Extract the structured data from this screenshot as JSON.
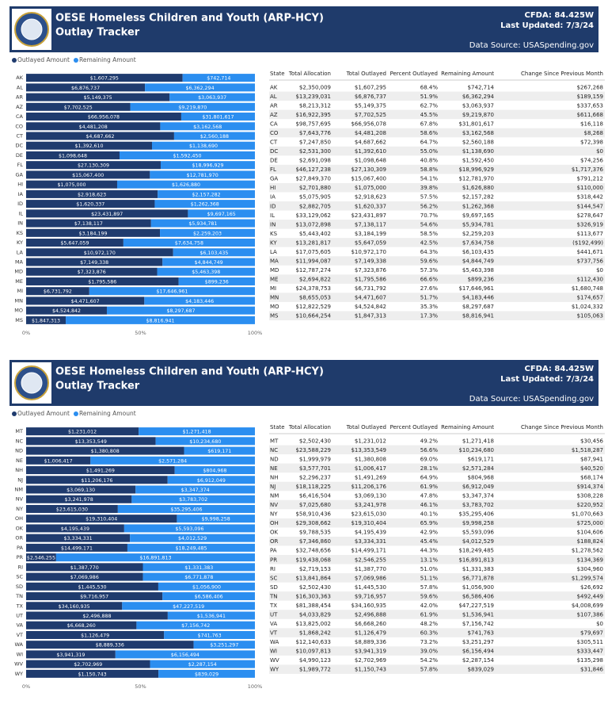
{
  "panels": [
    {
      "title": [
        "OESE Homeless Children and Youth (ARP-HCY)",
        "Outlay Tracker"
      ],
      "cfda": "CFDA: 84.425W",
      "updated": "Last Updated: 7/3/24",
      "source": "Data Source: USASpending.gov",
      "table": {
        "columns": [
          "State",
          "Total Allocation",
          "Total Outlayed",
          "Percent Outlayed",
          "Remaining Amount",
          "Change Since Previous Month"
        ],
        "rows": [
          [
            "AK",
            "$2,350,009",
            "$1,607,295",
            "68.4%",
            "$742,714",
            "$267,268"
          ],
          [
            "AL",
            "$13,239,031",
            "$6,876,737",
            "51.9%",
            "$6,362,294",
            "$189,159"
          ],
          [
            "AR",
            "$8,213,312",
            "$5,149,375",
            "62.7%",
            "$3,063,937",
            "$337,653"
          ],
          [
            "AZ",
            "$16,922,395",
            "$7,702,525",
            "45.5%",
            "$9,219,870",
            "$611,668"
          ],
          [
            "CA",
            "$98,757,695",
            "$66,956,078",
            "67.8%",
            "$31,801,617",
            "$16,118"
          ],
          [
            "CO",
            "$7,643,776",
            "$4,481,208",
            "58.6%",
            "$3,162,568",
            "$8,268"
          ],
          [
            "CT",
            "$7,247,850",
            "$4,687,662",
            "64.7%",
            "$2,560,188",
            "$72,398"
          ],
          [
            "DC",
            "$2,531,300",
            "$1,392,610",
            "55.0%",
            "$1,138,690",
            "$0"
          ],
          [
            "DE",
            "$2,691,098",
            "$1,098,648",
            "40.8%",
            "$1,592,450",
            "$74,256"
          ],
          [
            "FL",
            "$46,127,238",
            "$27,130,309",
            "58.8%",
            "$18,996,929",
            "$1,717,376"
          ],
          [
            "GA",
            "$27,849,370",
            "$15,067,400",
            "54.1%",
            "$12,781,970",
            "$791,212"
          ],
          [
            "HI",
            "$2,701,880",
            "$1,075,000",
            "39.8%",
            "$1,626,880",
            "$110,000"
          ],
          [
            "IA",
            "$5,075,905",
            "$2,918,623",
            "57.5%",
            "$2,157,282",
            "$318,442"
          ],
          [
            "ID",
            "$2,882,705",
            "$1,620,337",
            "56.2%",
            "$1,262,368",
            "$144,547"
          ],
          [
            "IL",
            "$33,129,062",
            "$23,431,897",
            "70.7%",
            "$9,697,165",
            "$278,647"
          ],
          [
            "IN",
            "$13,072,898",
            "$7,138,117",
            "54.6%",
            "$5,934,781",
            "$326,919"
          ],
          [
            "KS",
            "$5,443,402",
            "$3,184,199",
            "58.5%",
            "$2,259,203",
            "$113,677"
          ],
          [
            "KY",
            "$13,281,817",
            "$5,647,059",
            "42.5%",
            "$7,634,758",
            "($192,499)"
          ],
          [
            "LA",
            "$17,075,605",
            "$10,972,170",
            "64.3%",
            "$6,103,435",
            "$441,671"
          ],
          [
            "MA",
            "$11,994,087",
            "$7,149,338",
            "59.6%",
            "$4,844,749",
            "$737,756"
          ],
          [
            "MD",
            "$12,787,274",
            "$7,323,876",
            "57.3%",
            "$5,463,398",
            "$0"
          ],
          [
            "ME",
            "$2,694,822",
            "$1,795,586",
            "66.6%",
            "$899,236",
            "$112,430"
          ],
          [
            "MI",
            "$24,378,753",
            "$6,731,792",
            "27.6%",
            "$17,646,961",
            "$1,680,748"
          ],
          [
            "MN",
            "$8,655,053",
            "$4,471,607",
            "51.7%",
            "$4,183,446",
            "$174,657"
          ],
          [
            "MO",
            "$12,822,529",
            "$4,524,842",
            "35.3%",
            "$8,297,687",
            "$1,024,332"
          ],
          [
            "MS",
            "$10,664,254",
            "$1,847,313",
            "17.3%",
            "$8,816,941",
            "$105,063"
          ]
        ]
      }
    },
    {
      "title": [
        "OESE Homeless Children and Youth (ARP-HCY)",
        "Outlay Tracker"
      ],
      "cfda": "CFDA: 84.425W",
      "updated": "Last Updated: 7/3/24",
      "source": "Data Source: USASpending.gov",
      "table": {
        "columns": [
          "State",
          "Total Allocation",
          "Total Outlayed",
          "Percent Outlayed",
          "Remaining Amount",
          "Change Since Previous Month"
        ],
        "rows": [
          [
            "MT",
            "$2,502,430",
            "$1,231,012",
            "49.2%",
            "$1,271,418",
            "$30,456"
          ],
          [
            "NC",
            "$23,588,229",
            "$13,353,549",
            "56.6%",
            "$10,234,680",
            "$1,518,287"
          ],
          [
            "ND",
            "$1,999,979",
            "$1,380,808",
            "69.0%",
            "$619,171",
            "$87,941"
          ],
          [
            "NE",
            "$3,577,701",
            "$1,006,417",
            "28.1%",
            "$2,571,284",
            "$40,520"
          ],
          [
            "NH",
            "$2,296,237",
            "$1,491,269",
            "64.9%",
            "$804,968",
            "$68,174"
          ],
          [
            "NJ",
            "$18,118,225",
            "$11,206,176",
            "61.9%",
            "$6,912,049",
            "$914,374"
          ],
          [
            "NM",
            "$6,416,504",
            "$3,069,130",
            "47.8%",
            "$3,347,374",
            "$308,228"
          ],
          [
            "NV",
            "$7,025,680",
            "$3,241,978",
            "46.1%",
            "$3,783,702",
            "$220,952"
          ],
          [
            "NY",
            "$58,910,436",
            "$23,615,030",
            "40.1%",
            "$35,295,406",
            "$1,070,663"
          ],
          [
            "OH",
            "$29,308,662",
            "$19,310,404",
            "65.9%",
            "$9,998,258",
            "$725,000"
          ],
          [
            "OK",
            "$9,788,535",
            "$4,195,439",
            "42.9%",
            "$5,593,096",
            "$104,606"
          ],
          [
            "OR",
            "$7,346,860",
            "$3,334,331",
            "45.4%",
            "$4,012,529",
            "$188,824"
          ],
          [
            "PA",
            "$32,748,656",
            "$14,499,171",
            "44.3%",
            "$18,249,485",
            "$1,278,562"
          ],
          [
            "PR",
            "$19,438,068",
            "$2,546,255",
            "13.1%",
            "$16,891,813",
            "$134,369"
          ],
          [
            "RI",
            "$2,719,153",
            "$1,387,770",
            "51.0%",
            "$1,331,383",
            "$304,960"
          ],
          [
            "SC",
            "$13,841,864",
            "$7,069,986",
            "51.1%",
            "$6,771,878",
            "$1,299,574"
          ],
          [
            "SD",
            "$2,502,430",
            "$1,445,530",
            "57.8%",
            "$1,056,900",
            "$26,692"
          ],
          [
            "TN",
            "$16,303,363",
            "$9,716,957",
            "59.6%",
            "$6,586,406",
            "$492,449"
          ],
          [
            "TX",
            "$81,388,454",
            "$34,160,935",
            "42.0%",
            "$47,227,519",
            "$4,008,699"
          ],
          [
            "UT",
            "$4,033,829",
            "$2,496,888",
            "61.9%",
            "$1,536,941",
            "$107,386"
          ],
          [
            "VA",
            "$13,825,002",
            "$6,668,260",
            "48.2%",
            "$7,156,742",
            "$0"
          ],
          [
            "VT",
            "$1,868,242",
            "$1,126,479",
            "60.3%",
            "$741,763",
            "$79,697"
          ],
          [
            "WA",
            "$12,140,633",
            "$8,889,336",
            "73.2%",
            "$3,251,297",
            "$305,511"
          ],
          [
            "WI",
            "$10,097,813",
            "$3,941,319",
            "39.0%",
            "$6,156,494",
            "$333,447"
          ],
          [
            "WV",
            "$4,990,123",
            "$2,702,969",
            "54.2%",
            "$2,287,154",
            "$135,298"
          ],
          [
            "WY",
            "$1,989,772",
            "$1,150,743",
            "57.8%",
            "$839,029",
            "$31,846"
          ]
        ]
      }
    }
  ],
  "chart_data": [
    {
      "type": "bar",
      "orientation": "horizontal",
      "stacking": "percent",
      "legend": "top-left",
      "categories": [
        "AK",
        "AL",
        "AR",
        "AZ",
        "CA",
        "CO",
        "CT",
        "DC",
        "DE",
        "FL",
        "GA",
        "HI",
        "IA",
        "ID",
        "IL",
        "IN",
        "KS",
        "KY",
        "LA",
        "MA",
        "MD",
        "ME",
        "MI",
        "MN",
        "MO",
        "MS"
      ],
      "series": [
        {
          "name": "Outlayed Amount",
          "color": "#1f3b6e",
          "values": [
            1607295,
            6876737,
            5149375,
            7702525,
            66956078,
            4481208,
            4687662,
            1392610,
            1098648,
            27130309,
            15067400,
            1075000,
            2918623,
            1620337,
            23431897,
            7138117,
            3184199,
            5647059,
            10972170,
            7149338,
            7323876,
            1795586,
            6731792,
            4471607,
            4524842,
            1847313
          ],
          "value_labels": [
            "$1,607,295",
            "$6,876,737",
            "$5,149,375",
            "$7,702,525",
            "$66,956,078",
            "$4,481,208",
            "$4,687,662",
            "$1,392,610",
            "$1,098,648",
            "$27,130,309",
            "$15,067,400",
            "$1,075,000",
            "$2,918,623",
            "$1,620,337",
            "$23,431,897",
            "$7,138,117",
            "$3,184,199",
            "$5,647,059",
            "$10,972,170",
            "$7,149,338",
            "$7,323,876",
            "$1,795,586",
            "$6,731,792",
            "$4,471,607",
            "$4,524,842",
            "$1,847,313"
          ]
        },
        {
          "name": "Remaining Amount",
          "color": "#2b8ef0",
          "values": [
            742714,
            6362294,
            3063937,
            9219870,
            31801617,
            3162568,
            2560188,
            1138690,
            1592450,
            18996929,
            12781970,
            1626880,
            2157282,
            1262368,
            9697165,
            5934781,
            2259203,
            7634758,
            6103435,
            4844749,
            5463398,
            899236,
            17646961,
            4183446,
            8297687,
            8816941
          ],
          "value_labels": [
            "$742,714",
            "$6,362,294",
            "$3,063,937",
            "$9,219,870",
            "$31,801,617",
            "$3,162,568",
            "$2,560,188",
            "$1,138,690",
            "$1,592,450",
            "$18,996,929",
            "$12,781,970",
            "$1,626,880",
            "$2,157,282",
            "$1,262,368",
            "$9,697,165",
            "$5,934,781",
            "$2,259,203",
            "$7,634,758",
            "$6,103,435",
            "$4,844,749",
            "$5,463,398",
            "$899,236",
            "$17,646,961",
            "$4,183,446",
            "$8,297,687",
            "$8,816,941"
          ]
        }
      ],
      "xlim": [
        0,
        100
      ],
      "xticks": [
        {
          "value": 0,
          "label": "0%"
        },
        {
          "value": 50,
          "label": "50%"
        },
        {
          "value": 100,
          "label": "100%"
        }
      ]
    },
    {
      "type": "bar",
      "orientation": "horizontal",
      "stacking": "percent",
      "legend": "top-left",
      "categories": [
        "MT",
        "NC",
        "ND",
        "NE",
        "NH",
        "NJ",
        "NM",
        "NV",
        "NY",
        "OH",
        "OK",
        "OR",
        "PA",
        "PR",
        "RI",
        "SC",
        "SD",
        "TN",
        "TX",
        "UT",
        "VA",
        "VT",
        "WA",
        "WI",
        "WV",
        "WY"
      ],
      "series": [
        {
          "name": "Outlayed Amount",
          "color": "#1f3b6e",
          "values": [
            1231012,
            13353549,
            1380808,
            1006417,
            1491269,
            11206176,
            3069130,
            3241978,
            23615030,
            19310404,
            4195439,
            3334331,
            14499171,
            2546255,
            1387770,
            7069986,
            1445530,
            9716957,
            34160935,
            2496888,
            6668260,
            1126479,
            8889336,
            3941319,
            2702969,
            1150743
          ],
          "value_labels": [
            "$1,231,012",
            "$13,353,549",
            "$1,380,808",
            "$1,006,417",
            "$1,491,269",
            "$11,206,176",
            "$3,069,130",
            "$3,241,978",
            "$23,615,030",
            "$19,310,404",
            "$4,195,439",
            "$3,334,331",
            "$14,499,171",
            "$2,546,255",
            "$1,387,770",
            "$7,069,986",
            "$1,445,530",
            "$9,716,957",
            "$34,160,935",
            "$2,496,888",
            "$6,668,260",
            "$1,126,479",
            "$8,889,336",
            "$3,941,319",
            "$2,702,969",
            "$1,150,743"
          ]
        },
        {
          "name": "Remaining Amount",
          "color": "#2b8ef0",
          "values": [
            1271418,
            10234680,
            619171,
            2571284,
            804968,
            6912049,
            3347374,
            3783702,
            35295406,
            9998258,
            5593096,
            4012529,
            18249485,
            16891813,
            1331383,
            6771878,
            1056900,
            6586406,
            47227519,
            1536941,
            7156742,
            741763,
            3251297,
            6156494,
            2287154,
            839029
          ],
          "value_labels": [
            "$1,271,418",
            "$10,234,680",
            "$619,171",
            "$2,571,284",
            "$804,968",
            "$6,912,049",
            "$3,347,374",
            "$3,783,702",
            "$35,295,406",
            "$9,998,258",
            "$5,593,096",
            "$4,012,529",
            "$18,249,485",
            "$16,891,813",
            "$1,331,383",
            "$6,771,878",
            "$1,056,900",
            "$6,586,406",
            "$47,227,519",
            "$1,536,941",
            "$7,156,742",
            "$741,763",
            "$3,251,297",
            "$6,156,494",
            "$2,287,154",
            "$839,029"
          ]
        }
      ],
      "xlim": [
        0,
        100
      ],
      "xticks": [
        {
          "value": 0,
          "label": "0%"
        },
        {
          "value": 50,
          "label": "50%"
        },
        {
          "value": 100,
          "label": "100%"
        }
      ]
    }
  ]
}
